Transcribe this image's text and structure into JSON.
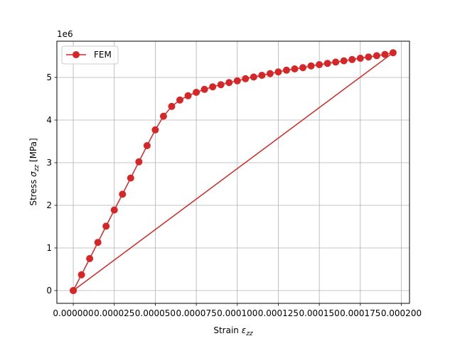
{
  "chart_data": {
    "type": "line",
    "xlabel_main": "Strain ",
    "xlabel_symbol": "ε",
    "xlabel_sub": "zz",
    "ylabel_main": "Stress ",
    "ylabel_symbol": "σ",
    "ylabel_sub": "zz",
    "ylabel_unit": " [MPa]",
    "y_offset_text": "1e6",
    "xlim": [
      -1e-05,
      0.000205
    ],
    "ylim": [
      -300000,
      5850000
    ],
    "x_ticks": [
      0,
      2.5e-05,
      5e-05,
      7.5e-05,
      0.0001,
      0.000125,
      0.00015,
      0.000175,
      0.0002
    ],
    "x_tick_labels": [
      "0.000000",
      "0.000025",
      "0.000050",
      "0.000075",
      "0.000100",
      "0.000125",
      "0.000150",
      "0.000175",
      "0.000200"
    ],
    "y_ticks": [
      0,
      1000000,
      2000000,
      3000000,
      4000000,
      5000000
    ],
    "y_tick_labels": [
      "0",
      "1",
      "2",
      "3",
      "4",
      "5"
    ],
    "grid": true,
    "legend_position": "top-left",
    "series": [
      {
        "name": "FEM",
        "color": "#d62728",
        "marker": "circle",
        "x": [
          0,
          5e-06,
          1e-05,
          1.5e-05,
          2e-05,
          2.5e-05,
          3e-05,
          3.5e-05,
          4e-05,
          4.5e-05,
          5e-05,
          5.5e-05,
          6e-05,
          6.5e-05,
          7e-05,
          7.5e-05,
          8e-05,
          8.5e-05,
          9e-05,
          9.5e-05,
          0.0001,
          0.000105,
          0.00011,
          0.000115,
          0.00012,
          0.000125,
          0.00013,
          0.000135,
          0.00014,
          0.000145,
          0.00015,
          0.000155,
          0.00016,
          0.000165,
          0.00017,
          0.000175,
          0.00018,
          0.000185,
          0.00019,
          0.000195,
          0
        ],
        "y": [
          0,
          370000,
          750000,
          1130000,
          1510000,
          1890000,
          2260000,
          2640000,
          3020000,
          3400000,
          3770000,
          4090000,
          4320000,
          4470000,
          4570000,
          4650000,
          4720000,
          4780000,
          4830000,
          4880000,
          4920000,
          4970000,
          5010000,
          5050000,
          5090000,
          5130000,
          5170000,
          5200000,
          5230000,
          5270000,
          5300000,
          5330000,
          5360000,
          5390000,
          5420000,
          5450000,
          5480000,
          5510000,
          5540000,
          5580000,
          0
        ]
      }
    ]
  }
}
